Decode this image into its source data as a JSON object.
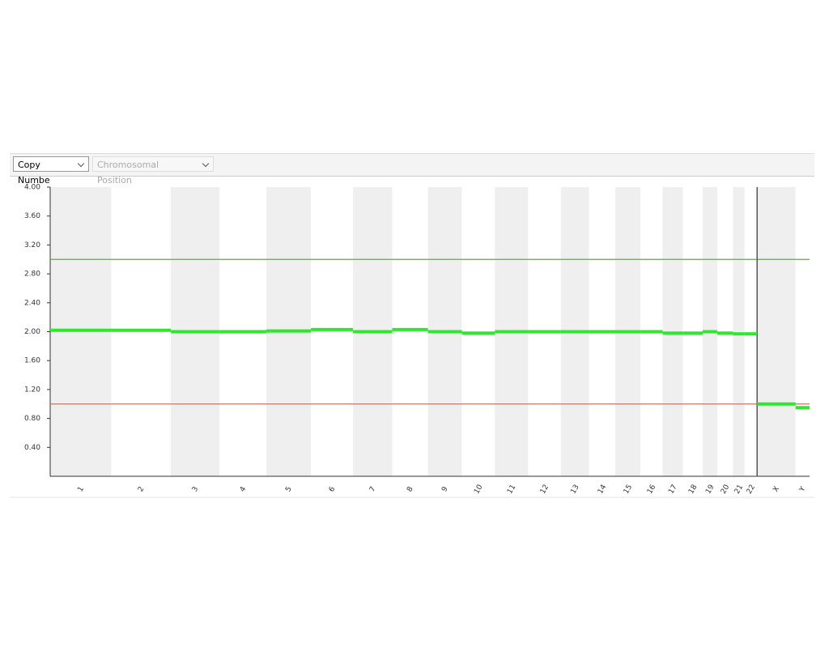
{
  "toolbar": {
    "metric_dropdown": "Copy Numbe",
    "position_dropdown": "Chromosomal Position"
  },
  "chart_data": {
    "type": "segments",
    "categories": [
      "1",
      "2",
      "3",
      "4",
      "5",
      "6",
      "7",
      "8",
      "9",
      "10",
      "11",
      "12",
      "13",
      "14",
      "15",
      "16",
      "17",
      "18",
      "19",
      "20",
      "21",
      "22",
      "X",
      "Y"
    ],
    "chromosome_lengths": [
      248,
      242,
      198,
      190,
      181,
      171,
      159,
      145,
      138,
      134,
      135,
      133,
      114,
      107,
      102,
      90,
      83,
      80,
      59,
      64,
      47,
      51,
      156,
      57
    ],
    "values": [
      2.02,
      2.02,
      2.0,
      2.0,
      2.01,
      2.03,
      2.0,
      2.03,
      2.0,
      1.98,
      2.0,
      2.0,
      2.0,
      2.0,
      2.0,
      2.0,
      1.98,
      1.98,
      2.0,
      1.98,
      1.97,
      1.97,
      1.0,
      0.95
    ],
    "color": "#2ee82e",
    "band_color": "#efefef",
    "ylim": [
      0,
      4
    ],
    "yticks": [
      {
        "value": 0.4,
        "label": "0.40"
      },
      {
        "value": 0.8,
        "label": "0.80"
      },
      {
        "value": 1.2,
        "label": "1.20"
      },
      {
        "value": 1.6,
        "label": "1.60"
      },
      {
        "value": 2.0,
        "label": "2.00"
      },
      {
        "value": 2.4,
        "label": "2.40"
      },
      {
        "value": 2.8,
        "label": "2.80"
      },
      {
        "value": 3.2,
        "label": "3.20"
      },
      {
        "value": 3.6,
        "label": "3.60"
      },
      {
        "value": 4.0,
        "label": "4.00"
      }
    ],
    "reference_lines": [
      {
        "value": 3,
        "color": "#6f9e60"
      },
      {
        "value": 1,
        "color": "#c07a66"
      }
    ]
  }
}
